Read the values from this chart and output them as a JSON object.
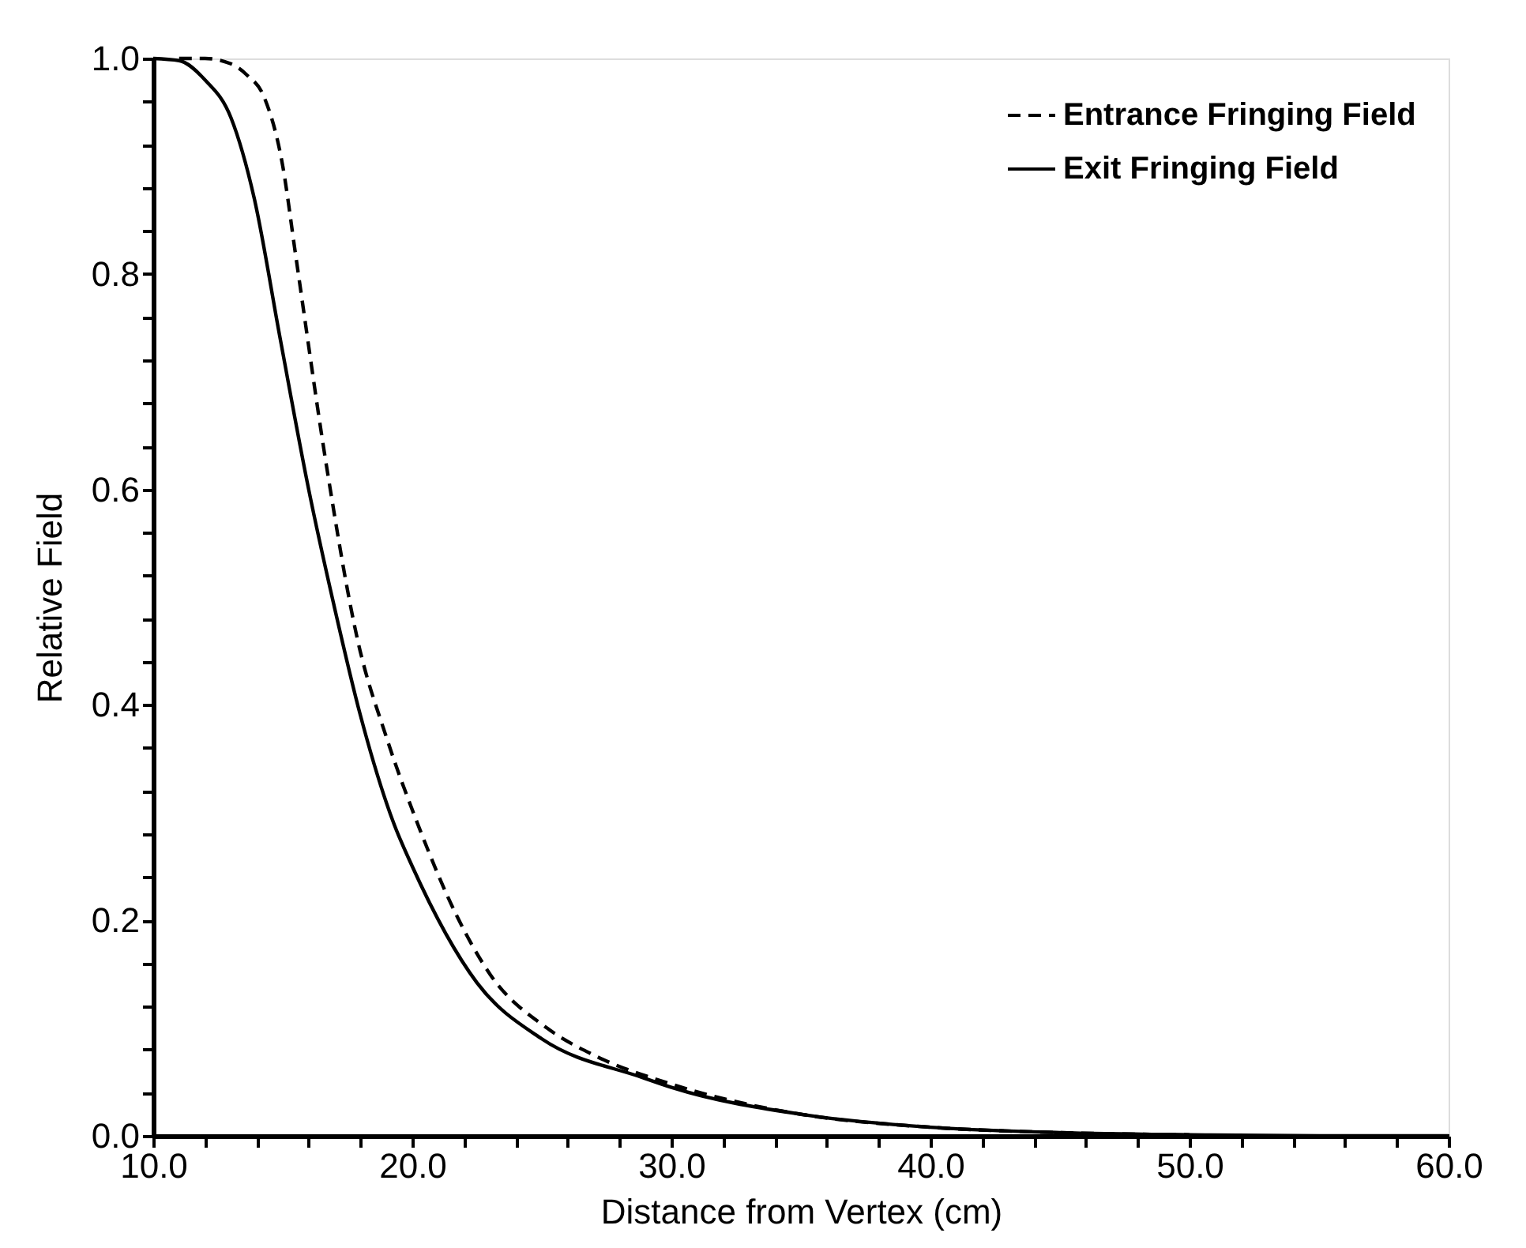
{
  "chart_data": {
    "type": "line",
    "xlabel": "Distance from Vertex (cm)",
    "ylabel": "Relative Field",
    "xlim": [
      10,
      60
    ],
    "ylim": [
      0,
      1
    ],
    "xticks": [
      {
        "value": 10,
        "label": "10.0"
      },
      {
        "value": 12,
        "label": null
      },
      {
        "value": 14,
        "label": null
      },
      {
        "value": 16,
        "label": null
      },
      {
        "value": 18,
        "label": null
      },
      {
        "value": 20,
        "label": "20.0"
      },
      {
        "value": 22,
        "label": null
      },
      {
        "value": 24,
        "label": null
      },
      {
        "value": 26,
        "label": null
      },
      {
        "value": 28,
        "label": null
      },
      {
        "value": 30,
        "label": "30.0"
      },
      {
        "value": 32,
        "label": null
      },
      {
        "value": 34,
        "label": null
      },
      {
        "value": 36,
        "label": null
      },
      {
        "value": 38,
        "label": null
      },
      {
        "value": 40,
        "label": "40.0"
      },
      {
        "value": 42,
        "label": null
      },
      {
        "value": 44,
        "label": null
      },
      {
        "value": 46,
        "label": null
      },
      {
        "value": 48,
        "label": null
      },
      {
        "value": 50,
        "label": "50.0"
      },
      {
        "value": 52,
        "label": null
      },
      {
        "value": 54,
        "label": null
      },
      {
        "value": 56,
        "label": null
      },
      {
        "value": 58,
        "label": null
      },
      {
        "value": 60,
        "label": "60.0"
      }
    ],
    "yticks": [
      {
        "value": 0,
        "label": "0.0"
      },
      {
        "value": 0.04,
        "label": null
      },
      {
        "value": 0.08,
        "label": null
      },
      {
        "value": 0.12,
        "label": null
      },
      {
        "value": 0.16,
        "label": null
      },
      {
        "value": 0.2,
        "label": "0.2"
      },
      {
        "value": 0.24,
        "label": null
      },
      {
        "value": 0.28,
        "label": null
      },
      {
        "value": 0.32,
        "label": null
      },
      {
        "value": 0.36,
        "label": null
      },
      {
        "value": 0.4,
        "label": "0.4"
      },
      {
        "value": 0.44,
        "label": null
      },
      {
        "value": 0.48,
        "label": null
      },
      {
        "value": 0.52,
        "label": null
      },
      {
        "value": 0.56,
        "label": null
      },
      {
        "value": 0.6,
        "label": "0.6"
      },
      {
        "value": 0.64,
        "label": null
      },
      {
        "value": 0.68,
        "label": null
      },
      {
        "value": 0.72,
        "label": null
      },
      {
        "value": 0.76,
        "label": null
      },
      {
        "value": 0.8,
        "label": "0.8"
      },
      {
        "value": 0.84,
        "label": null
      },
      {
        "value": 0.88,
        "label": null
      },
      {
        "value": 0.92,
        "label": null
      },
      {
        "value": 0.96,
        "label": null
      },
      {
        "value": 1,
        "label": "1.0"
      }
    ],
    "grid": false,
    "legend": "top right",
    "marker": "none",
    "series": [
      {
        "name": "Entrance Fringing Field",
        "color": "#000000",
        "line_style": "dashed",
        "x": [
          11,
          12,
          13,
          13.6,
          14.3,
          15,
          15.5,
          16.7,
          17.9,
          19,
          20.2,
          21.7,
          23,
          25.2,
          27,
          30,
          35,
          40,
          45,
          50
        ],
        "values": [
          1.0,
          1.0,
          0.995,
          0.985,
          0.963,
          0.9,
          0.817,
          0.62,
          0.459,
          0.37,
          0.29,
          0.205,
          0.15,
          0.1,
          0.075,
          0.048,
          0.02,
          0.008,
          0.003,
          0.001
        ]
      },
      {
        "name": "Exit Fringing Field",
        "color": "#000000",
        "line_style": "solid",
        "x": [
          10,
          11,
          12,
          13,
          13.9,
          14.9,
          16,
          17,
          18,
          19.3,
          20,
          22.5,
          25,
          28.9,
          30,
          35.3,
          40,
          45,
          50,
          55,
          60
        ],
        "values": [
          1.0,
          0.998,
          0.98,
          0.945,
          0.87,
          0.74,
          0.6,
          0.49,
          0.39,
          0.289,
          0.25,
          0.142,
          0.09,
          0.054,
          0.045,
          0.019,
          0.008,
          0.003,
          0.001,
          0.0,
          0.0
        ]
      }
    ]
  }
}
